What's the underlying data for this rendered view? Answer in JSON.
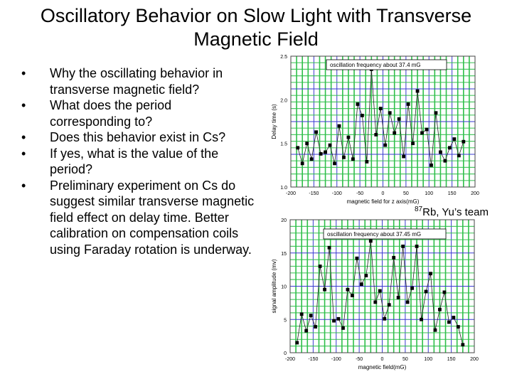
{
  "slide": {
    "title": "Oscillatory Behavior on Slow Light with Transverse Magnetic Field",
    "bullets": [
      "Why the oscillating behavior in transverse magnetic field?",
      "What does the period corresponding to?",
      "Does this behavior exist in Cs?",
      "If yes, what is the value of the period?",
      "Preliminary experiment on Cs do suggest similar transverse magnetic field effect on delay time. Better calibration on compensation coils using Faraday rotation is underway."
    ],
    "credit_sup": "87",
    "credit_text": "Rb, Yu’s team"
  },
  "chart_data": [
    {
      "type": "line",
      "title": "",
      "annotation": "oscillation frequency about 37.4 mG",
      "xlabel": "magnetic field for z axis(mG)",
      "ylabel": "Delay time (s)",
      "xlim": [
        -200,
        200
      ],
      "ylim": [
        1.0,
        2.5
      ],
      "xticks": [
        -200,
        -150,
        -100,
        -50,
        0,
        50,
        100,
        150,
        200
      ],
      "yticks": [
        1.0,
        1.5,
        2.0,
        2.5
      ],
      "ytick_labels": [
        "1.0",
        "1.5",
        "2.0",
        "2.5"
      ],
      "grid": true,
      "marker": "square",
      "x": [
        -185,
        -175,
        -165,
        -155,
        -145,
        -135,
        -125,
        -115,
        -105,
        -95,
        -85,
        -75,
        -65,
        -55,
        -45,
        -35,
        -25,
        -15,
        -5,
        5,
        15,
        25,
        35,
        45,
        55,
        65,
        75,
        85,
        95,
        105,
        115,
        125,
        135,
        145,
        155,
        165,
        175
      ],
      "y": [
        1.45,
        1.27,
        1.5,
        1.32,
        1.63,
        1.38,
        1.4,
        1.48,
        1.27,
        1.7,
        1.34,
        1.57,
        1.32,
        1.95,
        1.82,
        1.29,
        2.35,
        1.6,
        1.9,
        1.48,
        1.85,
        1.62,
        1.78,
        1.35,
        1.95,
        1.5,
        2.1,
        1.62,
        1.66,
        1.25,
        1.85,
        1.4,
        1.3,
        1.45,
        1.55,
        1.36,
        1.52
      ]
    },
    {
      "type": "line",
      "title": "",
      "annotation": "oscillation frequency about 37.45 mG",
      "xlabel": "magnetic field(mG)",
      "ylabel": "signal amplitude (mv)",
      "xlim": [
        -200,
        200
      ],
      "ylim": [
        0,
        20
      ],
      "xticks": [
        -200,
        -150,
        -100,
        -50,
        0,
        50,
        100,
        150,
        200
      ],
      "yticks": [
        0,
        5,
        10,
        15,
        20
      ],
      "ytick_labels": [
        "0",
        "5",
        "10",
        "15",
        "20"
      ],
      "grid": true,
      "marker": "square",
      "x": [
        -185,
        -175,
        -165,
        -155,
        -145,
        -135,
        -125,
        -115,
        -105,
        -95,
        -85,
        -75,
        -65,
        -55,
        -45,
        -35,
        -25,
        -15,
        -5,
        5,
        15,
        25,
        35,
        45,
        55,
        65,
        75,
        85,
        95,
        105,
        115,
        125,
        135,
        145,
        155,
        165,
        175
      ],
      "y": [
        1.5,
        5.8,
        3.3,
        5.6,
        3.9,
        13,
        9.5,
        15.8,
        4.8,
        5.1,
        3.7,
        9.5,
        8.6,
        14.2,
        10.3,
        11.6,
        16.8,
        7.6,
        9.3,
        5.1,
        7.2,
        14.3,
        8.3,
        16,
        7.6,
        9.7,
        16,
        5,
        9.2,
        11.9,
        3.4,
        6.5,
        9.1,
        4.6,
        5.3,
        3.9,
        1.2
      ]
    }
  ]
}
